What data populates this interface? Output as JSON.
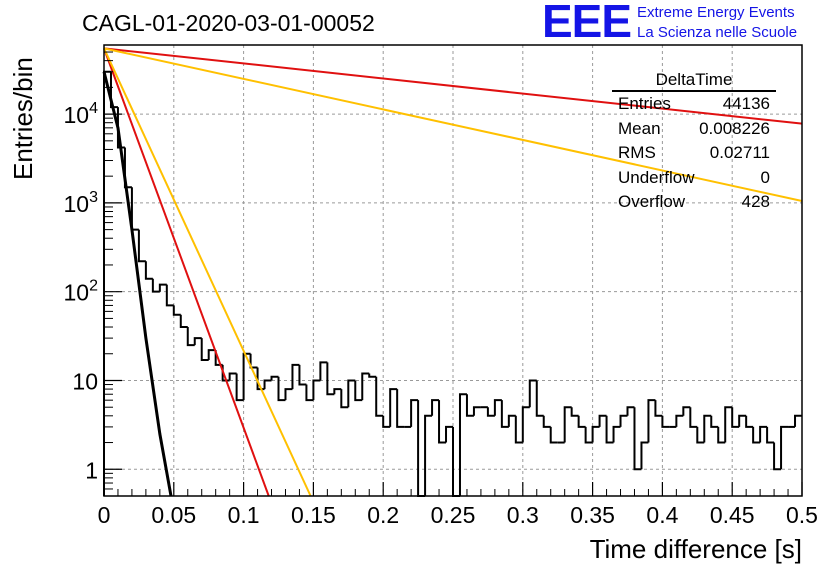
{
  "header": {
    "title": "CAGL-01-2020-03-01-00052",
    "logo_text": "EEE",
    "logo_line1": "Extreme Energy Events",
    "logo_line2": "La Scienza nelle Scuole"
  },
  "stats_box": {
    "title": "DeltaTime",
    "rows": [
      {
        "label": "Entries",
        "value": "44136"
      },
      {
        "label": "Mean",
        "value": "0.008226"
      },
      {
        "label": "RMS",
        "value": "0.02711"
      },
      {
        "label": "Underflow",
        "value": "0"
      },
      {
        "label": "Overflow",
        "value": "428"
      }
    ]
  },
  "colors": {
    "histogram": "#000000",
    "fit_red": "#e01010",
    "fit_orange": "#ffc000",
    "logo_blue": "#1414e6",
    "grid": "#9a9a9a"
  },
  "chart_data": {
    "type": "line",
    "title": "CAGL-01-2020-03-01-00052",
    "xlabel": "Time difference [s]",
    "ylabel": "Entries/bin",
    "xlim": [
      0,
      0.5
    ],
    "ylim": [
      0.5,
      60000
    ],
    "yscale": "log",
    "grid": true,
    "x_ticks": [
      "0",
      "0.05",
      "0.1",
      "0.15",
      "0.2",
      "0.25",
      "0.3",
      "0.35",
      "0.4",
      "0.45",
      "0.5"
    ],
    "y_ticks": [
      {
        "base": "1",
        "exp": ""
      },
      {
        "base": "10",
        "exp": ""
      },
      {
        "base": "10",
        "exp": "2"
      },
      {
        "base": "10",
        "exp": "3"
      },
      {
        "base": "10",
        "exp": "4"
      }
    ],
    "histogram": {
      "bin_width": 0.005,
      "counts": [
        30000,
        12000,
        4200,
        1500,
        500,
        220,
        140,
        100,
        120,
        70,
        55,
        40,
        25,
        30,
        17,
        22,
        15,
        10,
        12,
        6,
        20,
        14,
        8,
        10,
        11,
        6,
        8,
        15,
        9,
        6,
        10,
        16,
        7,
        8,
        5,
        10,
        6,
        12,
        11,
        4,
        3,
        8,
        3,
        3,
        6,
        0.1,
        4,
        6,
        2,
        3,
        0.1,
        7,
        4,
        5,
        5,
        4,
        6,
        3,
        4,
        2,
        5,
        10,
        4,
        3,
        2,
        2,
        5,
        4,
        3,
        2,
        3,
        4,
        2,
        3,
        4,
        5,
        1,
        2,
        6,
        4,
        3,
        3,
        4,
        5,
        3,
        2,
        4,
        3,
        2,
        5,
        3,
        4,
        3,
        2,
        3,
        2,
        1,
        3,
        3,
        4
      ]
    },
    "series": [
      {
        "color": "black",
        "points": [
          [
            0.0,
            30000
          ],
          [
            0.01,
            7000
          ],
          [
            0.02,
            500
          ],
          [
            0.03,
            30
          ],
          [
            0.04,
            2.5
          ],
          [
            0.048,
            0.5
          ]
        ]
      },
      {
        "color": "red",
        "points": [
          [
            0.0,
            55000
          ],
          [
            0.118,
            0.5
          ]
        ]
      },
      {
        "color": "orange",
        "points": [
          [
            0.0,
            55000
          ],
          [
            0.148,
            0.5
          ]
        ]
      },
      {
        "color": "red",
        "points": [
          [
            0.0,
            55000
          ],
          [
            0.5,
            7800
          ]
        ]
      },
      {
        "color": "orange",
        "points": [
          [
            0.0,
            55000
          ],
          [
            0.5,
            1050
          ]
        ]
      }
    ]
  }
}
